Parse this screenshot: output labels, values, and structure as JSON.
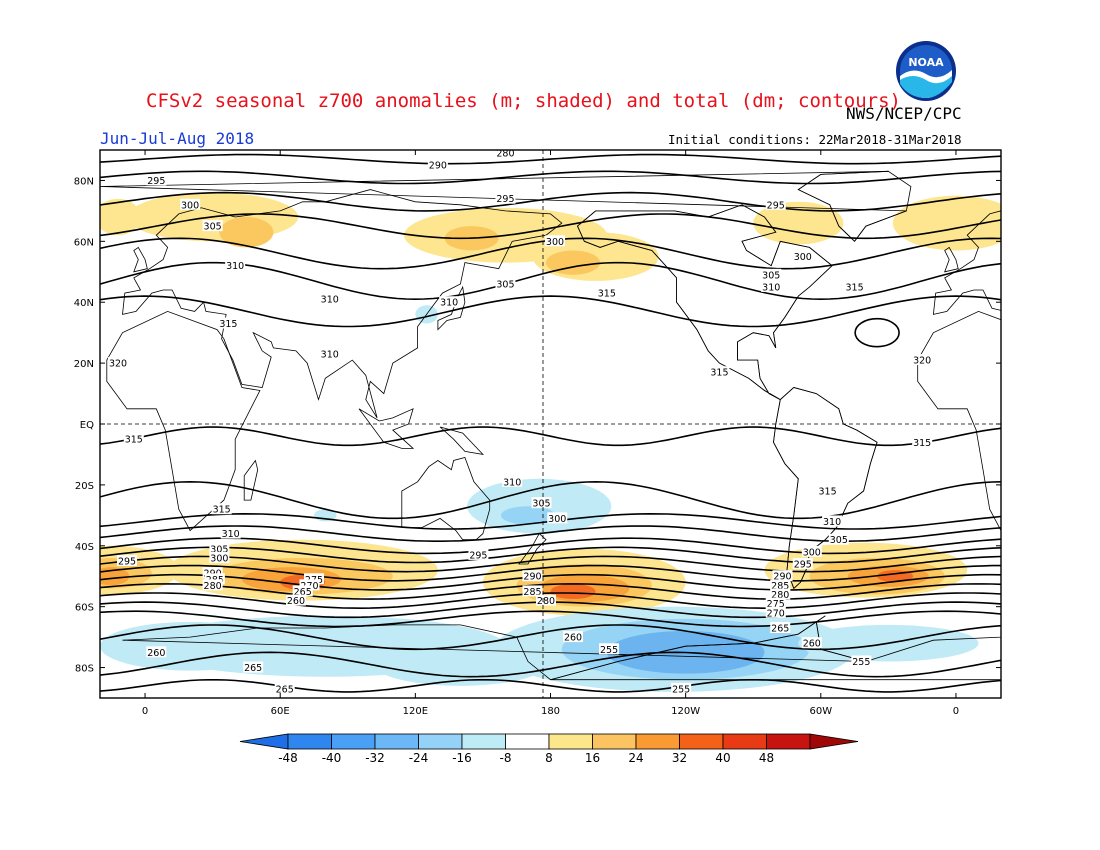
{
  "title": "CFSv2 seasonal z700 anomalies (m; shaded) and total (dm; contours)",
  "agency": "NWS/NCEP/CPC",
  "season": "Jun-Jul-Aug 2018",
  "initial_conditions": "Initial conditions: 22Mar2018-31Mar2018",
  "logo_text": "NOAA",
  "map": {
    "lat_labels": [
      "80N",
      "60N",
      "40N",
      "20N",
      "EQ",
      "20S",
      "40S",
      "60S",
      "80S"
    ],
    "lon_labels": [
      "0",
      "60E",
      "120E",
      "180",
      "120W",
      "60W",
      "0"
    ],
    "contour_labels": [
      {
        "text": "280",
        "lon": 160,
        "lat": 89
      },
      {
        "text": "290",
        "lon": 130,
        "lat": 85
      },
      {
        "text": "295",
        "lon": 5,
        "lat": 80
      },
      {
        "text": "295",
        "lon": 160,
        "lat": 74
      },
      {
        "text": "295",
        "lon": 280,
        "lat": 72
      },
      {
        "text": "300",
        "lon": 20,
        "lat": 72
      },
      {
        "text": "305",
        "lon": 30,
        "lat": 65
      },
      {
        "text": "310",
        "lon": 40,
        "lat": 52
      },
      {
        "text": "300",
        "lon": 182,
        "lat": 60
      },
      {
        "text": "305",
        "lon": 160,
        "lat": 46
      },
      {
        "text": "310",
        "lon": 135,
        "lat": 40
      },
      {
        "text": "315",
        "lon": 205,
        "lat": 43
      },
      {
        "text": "300",
        "lon": 292,
        "lat": 55
      },
      {
        "text": "305",
        "lon": 278,
        "lat": 49
      },
      {
        "text": "310",
        "lon": 278,
        "lat": 45
      },
      {
        "text": "315",
        "lon": 315,
        "lat": 45
      },
      {
        "text": "310",
        "lon": 82,
        "lat": 41
      },
      {
        "text": "315",
        "lon": 37,
        "lat": 33
      },
      {
        "text": "310",
        "lon": 82,
        "lat": 23
      },
      {
        "text": "320",
        "lon": -12,
        "lat": 20
      },
      {
        "text": "320",
        "lon": 345,
        "lat": 21
      },
      {
        "text": "315",
        "lon": 255,
        "lat": 17
      },
      {
        "text": "315",
        "lon": -5,
        "lat": -5
      },
      {
        "text": "315",
        "lon": 345,
        "lat": -6
      },
      {
        "text": "315",
        "lon": 34,
        "lat": -28
      },
      {
        "text": "315",
        "lon": 303,
        "lat": -22
      },
      {
        "text": "310",
        "lon": 163,
        "lat": -19
      },
      {
        "text": "305",
        "lon": 176,
        "lat": -26
      },
      {
        "text": "300",
        "lon": 183,
        "lat": -31
      },
      {
        "text": "310",
        "lon": 305,
        "lat": -32
      },
      {
        "text": "305",
        "lon": 308,
        "lat": -38
      },
      {
        "text": "300",
        "lon": 296,
        "lat": -42
      },
      {
        "text": "295",
        "lon": 292,
        "lat": -46
      },
      {
        "text": "310",
        "lon": 38,
        "lat": -36
      },
      {
        "text": "305",
        "lon": 33,
        "lat": -41
      },
      {
        "text": "300",
        "lon": 33,
        "lat": -44
      },
      {
        "text": "295",
        "lon": -8,
        "lat": -45
      },
      {
        "text": "295",
        "lon": 148,
        "lat": -43
      },
      {
        "text": "290",
        "lon": 30,
        "lat": -49
      },
      {
        "text": "285",
        "lon": 31,
        "lat": -51
      },
      {
        "text": "280",
        "lon": 30,
        "lat": -53
      },
      {
        "text": "290",
        "lon": 172,
        "lat": -50
      },
      {
        "text": "285",
        "lon": 172,
        "lat": -55
      },
      {
        "text": "280",
        "lon": 178,
        "lat": -58
      },
      {
        "text": "275",
        "lon": 75,
        "lat": -51
      },
      {
        "text": "270",
        "lon": 73,
        "lat": -53
      },
      {
        "text": "265",
        "lon": 70,
        "lat": -55
      },
      {
        "text": "260",
        "lon": 67,
        "lat": -58
      },
      {
        "text": "290",
        "lon": 283,
        "lat": -50
      },
      {
        "text": "285",
        "lon": 282,
        "lat": -53
      },
      {
        "text": "280",
        "lon": 282,
        "lat": -56
      },
      {
        "text": "275",
        "lon": 280,
        "lat": -59
      },
      {
        "text": "270",
        "lon": 280,
        "lat": -62
      },
      {
        "text": "265",
        "lon": 282,
        "lat": -67
      },
      {
        "text": "260",
        "lon": 296,
        "lat": -72
      },
      {
        "text": "260",
        "lon": 190,
        "lat": -70
      },
      {
        "text": "255",
        "lon": 206,
        "lat": -74
      },
      {
        "text": "255",
        "lon": 318,
        "lat": -78
      },
      {
        "text": "255",
        "lon": 238,
        "lat": -87
      },
      {
        "text": "260",
        "lon": 5,
        "lat": -75
      },
      {
        "text": "265",
        "lon": 48,
        "lat": -80
      },
      {
        "text": "265",
        "lon": 62,
        "lat": -87
      }
    ]
  },
  "colorbar": {
    "tick_labels": [
      "-48",
      "-40",
      "-32",
      "-24",
      "-16",
      "-8",
      "8",
      "16",
      "24",
      "32",
      "40",
      "48"
    ],
    "colors": [
      "#1e6ee8",
      "#2f86ee",
      "#4aa0f4",
      "#6cb8f6",
      "#94d2f8",
      "#bdebf6",
      "#ffffff",
      "#fce88a",
      "#fcc460",
      "#fa9a32",
      "#f4621a",
      "#e83a14",
      "#c81410",
      "#a00808"
    ]
  },
  "anomaly_colors": {
    "pos_8": "#fde68f",
    "pos_16": "#fbc85f",
    "pos_24": "#f8a43a",
    "pos_32": "#f36b22",
    "neg_8": "#bfeaf6",
    "neg_16": "#96d4f5",
    "neg_24": "#6cb4f0",
    "neg_32": "#4a96e8"
  }
}
